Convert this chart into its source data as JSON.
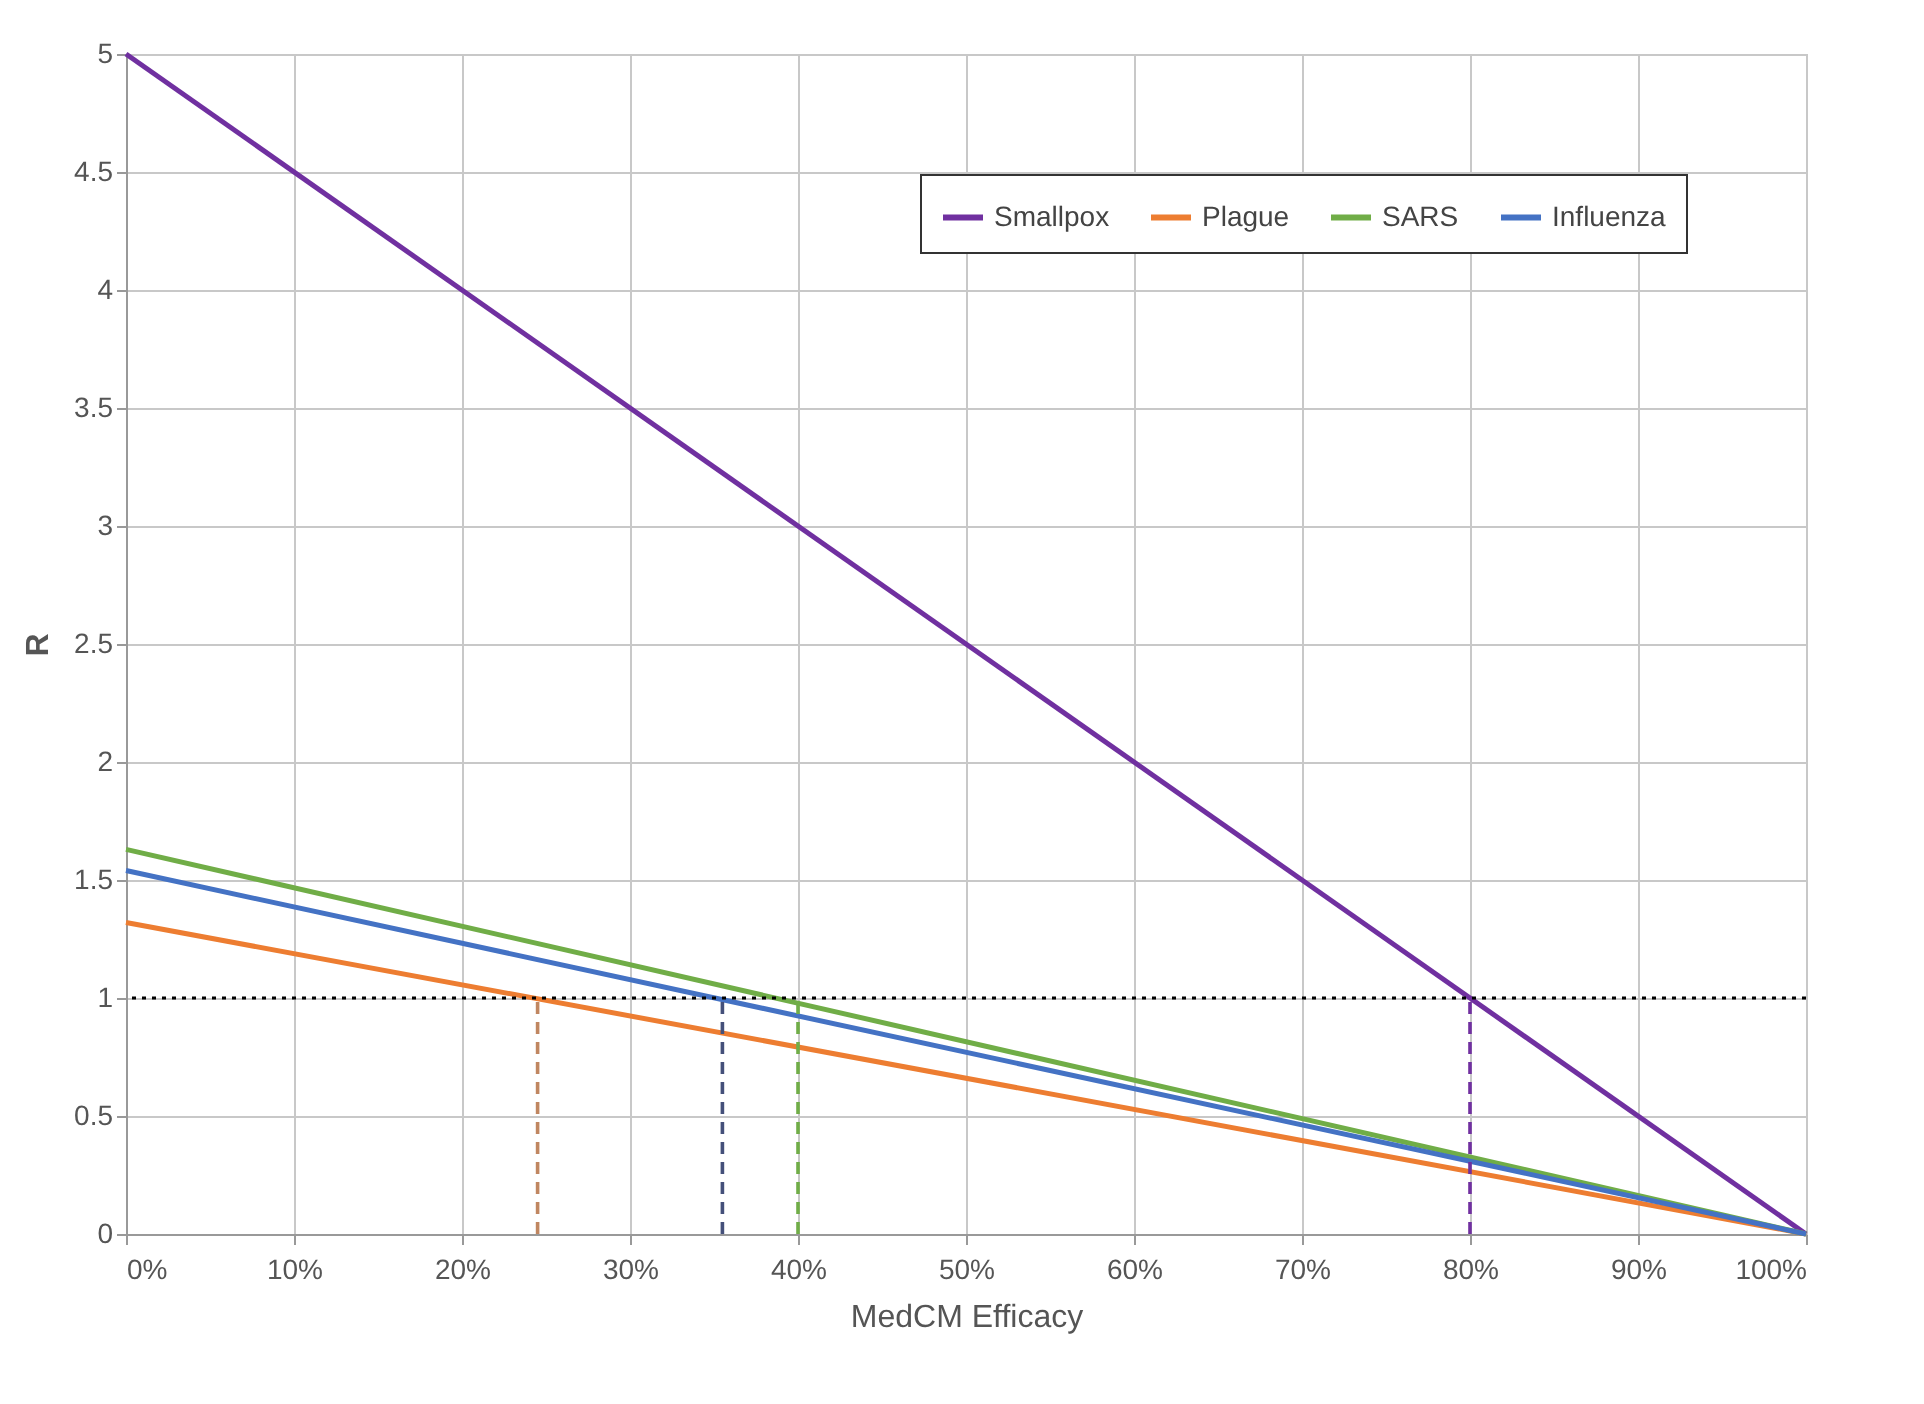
{
  "chart_data": {
    "type": "line",
    "xlabel": "MedCM Efficacy",
    "ylabel": "R",
    "x": [
      0,
      100
    ],
    "series": [
      {
        "name": "Smallpox",
        "color": "#7030a0",
        "values": [
          5,
          0
        ]
      },
      {
        "name": "Plague",
        "color": "#ed7d31",
        "values": [
          1.32,
          0
        ]
      },
      {
        "name": "SARS",
        "color": "#70ad47",
        "values": [
          1.63,
          0
        ]
      },
      {
        "name": "Influenza",
        "color": "#4472c4",
        "values": [
          1.54,
          0
        ]
      },
      {
        "color": "#c08660",
        "x": [
          24.5,
          24.5
        ],
        "values": [
          0,
          1
        ],
        "line_style": "dashed"
      },
      {
        "color": "#44507a",
        "x": [
          35.5,
          35.5
        ],
        "values": [
          0,
          1
        ],
        "line_style": "dashed"
      },
      {
        "color": "#70ad47",
        "x": [
          40,
          40
        ],
        "values": [
          0,
          1
        ],
        "line_style": "dashed"
      },
      {
        "color": "#7030a0",
        "x": [
          80,
          80
        ],
        "values": [
          0,
          1
        ],
        "line_style": "dashed"
      }
    ],
    "ref_lines": [
      {
        "axis": "y",
        "value": 1,
        "color": "#000000",
        "line_style": "dotted"
      }
    ],
    "xlim": [
      0,
      100
    ],
    "xticks": [
      {
        "value": 0,
        "label": "0%"
      },
      {
        "value": 10,
        "label": "10%"
      },
      {
        "value": 20,
        "label": "20%"
      },
      {
        "value": 30,
        "label": "30%"
      },
      {
        "value": 40,
        "label": "40%"
      },
      {
        "value": 50,
        "label": "50%"
      },
      {
        "value": 60,
        "label": "60%"
      },
      {
        "value": 70,
        "label": "70%"
      },
      {
        "value": 80,
        "label": "80%"
      },
      {
        "value": 90,
        "label": "90%"
      },
      {
        "value": 100,
        "label": "100%"
      }
    ],
    "ylim": [
      0,
      5
    ],
    "yticks": [
      0,
      0.5,
      1,
      1.5,
      2,
      2.5,
      3,
      3.5,
      4,
      4.5,
      5
    ],
    "grid": true,
    "legend": "top right",
    "line_style": "solid",
    "marker": "none"
  }
}
